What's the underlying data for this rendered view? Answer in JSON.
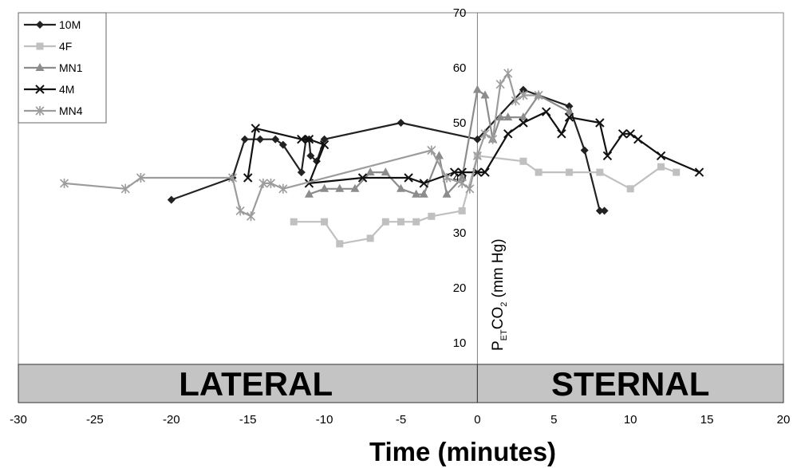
{
  "chart_data": {
    "type": "line",
    "xlabel": "Time (minutes)",
    "ylabel": {
      "main": "P",
      "sub1": "ET",
      "mid": "CO",
      "sub2": "2",
      "tail": " (mm Hg)"
    },
    "xlim": [
      -30,
      20
    ],
    "ylim": [
      0,
      70
    ],
    "x_ticks": [
      -30,
      -25,
      -20,
      -15,
      -10,
      -5,
      0,
      5,
      10,
      15,
      20
    ],
    "y_ticks": [
      10,
      20,
      30,
      40,
      50,
      60,
      70
    ],
    "bands": [
      {
        "label": "LATERAL",
        "x_range": [
          -30,
          0
        ]
      },
      {
        "label": "STERNAL",
        "x_range": [
          0,
          20
        ]
      }
    ],
    "legend_position": "top-left",
    "series": [
      {
        "name": "10M",
        "color": "#222222",
        "marker": "diamond",
        "points": [
          [
            -20,
            36
          ],
          [
            -16,
            40
          ],
          [
            -15.2,
            47
          ],
          [
            -14.2,
            47
          ],
          [
            -13.2,
            47
          ],
          [
            -12.7,
            46
          ],
          [
            -11.5,
            41
          ],
          [
            -11.2,
            47
          ],
          [
            -11,
            47
          ],
          [
            -10.9,
            44
          ],
          [
            -10.5,
            43
          ],
          [
            -10,
            47
          ],
          [
            -5,
            50
          ],
          [
            0,
            47
          ],
          [
            3,
            56
          ],
          [
            6,
            53
          ],
          [
            7,
            45
          ],
          [
            8,
            34
          ],
          [
            8.3,
            34
          ]
        ]
      },
      {
        "name": "4F",
        "color": "#c0c0c0",
        "marker": "square",
        "points": [
          [
            -12,
            32
          ],
          [
            -10,
            32
          ],
          [
            -9,
            28
          ],
          [
            -7,
            29
          ],
          [
            -6,
            32
          ],
          [
            -5,
            32
          ],
          [
            -4,
            32
          ],
          [
            -3,
            33
          ],
          [
            -1,
            34
          ],
          [
            0,
            44
          ],
          [
            3,
            43
          ],
          [
            4,
            41
          ],
          [
            6,
            41
          ],
          [
            8,
            41
          ],
          [
            10,
            38
          ],
          [
            12,
            42
          ],
          [
            13,
            41
          ]
        ]
      },
      {
        "name": "MN1",
        "color": "#8c8c8c",
        "marker": "triangle",
        "points": [
          [
            -11,
            37
          ],
          [
            -10,
            38
          ],
          [
            -9,
            38
          ],
          [
            -8,
            38
          ],
          [
            -7,
            41
          ],
          [
            -6,
            41
          ],
          [
            -5,
            38
          ],
          [
            -4,
            37
          ],
          [
            -3.5,
            37
          ],
          [
            -2.5,
            44
          ],
          [
            -2,
            37
          ],
          [
            -1,
            40
          ],
          [
            0,
            56
          ],
          [
            0.5,
            55
          ],
          [
            1,
            47
          ],
          [
            1.5,
            51
          ],
          [
            2,
            51
          ],
          [
            3,
            51
          ],
          [
            4,
            55
          ],
          [
            6,
            52
          ]
        ]
      },
      {
        "name": "4M",
        "color": "#111111",
        "marker": "x",
        "points": [
          [
            -15,
            40
          ],
          [
            -14.5,
            49
          ],
          [
            -11.5,
            47
          ],
          [
            -11,
            47
          ],
          [
            -10,
            46
          ],
          [
            -11,
            39
          ],
          [
            -7.5,
            40
          ],
          [
            -4.5,
            40
          ],
          [
            -3.5,
            39
          ],
          [
            -1.5,
            41
          ],
          [
            -1,
            41
          ],
          [
            0,
            41
          ],
          [
            0.5,
            41
          ],
          [
            2,
            48
          ],
          [
            3,
            50
          ],
          [
            4.5,
            52
          ],
          [
            5.5,
            48
          ],
          [
            6,
            51
          ],
          [
            8,
            50
          ],
          [
            8.5,
            44
          ],
          [
            9.5,
            48
          ],
          [
            10,
            48
          ],
          [
            10.5,
            47
          ],
          [
            12,
            44
          ],
          [
            14.5,
            41
          ]
        ]
      },
      {
        "name": "MN4",
        "color": "#9c9c9c",
        "marker": "asterisk",
        "points": [
          [
            -27,
            39
          ],
          [
            -23,
            38
          ],
          [
            -22,
            40
          ],
          [
            -16,
            40
          ],
          [
            -15.5,
            34
          ],
          [
            -14.8,
            33
          ],
          [
            -14,
            39
          ],
          [
            -13.5,
            39
          ],
          [
            -12.7,
            38
          ],
          [
            -3,
            45
          ],
          [
            -2,
            40
          ],
          [
            -1,
            39
          ],
          [
            -0.5,
            38
          ],
          [
            0,
            44
          ],
          [
            0.5,
            48
          ],
          [
            1,
            47
          ],
          [
            1.5,
            57
          ],
          [
            2,
            59
          ],
          [
            2.5,
            54
          ],
          [
            3,
            55
          ],
          [
            4,
            55
          ]
        ]
      }
    ]
  }
}
